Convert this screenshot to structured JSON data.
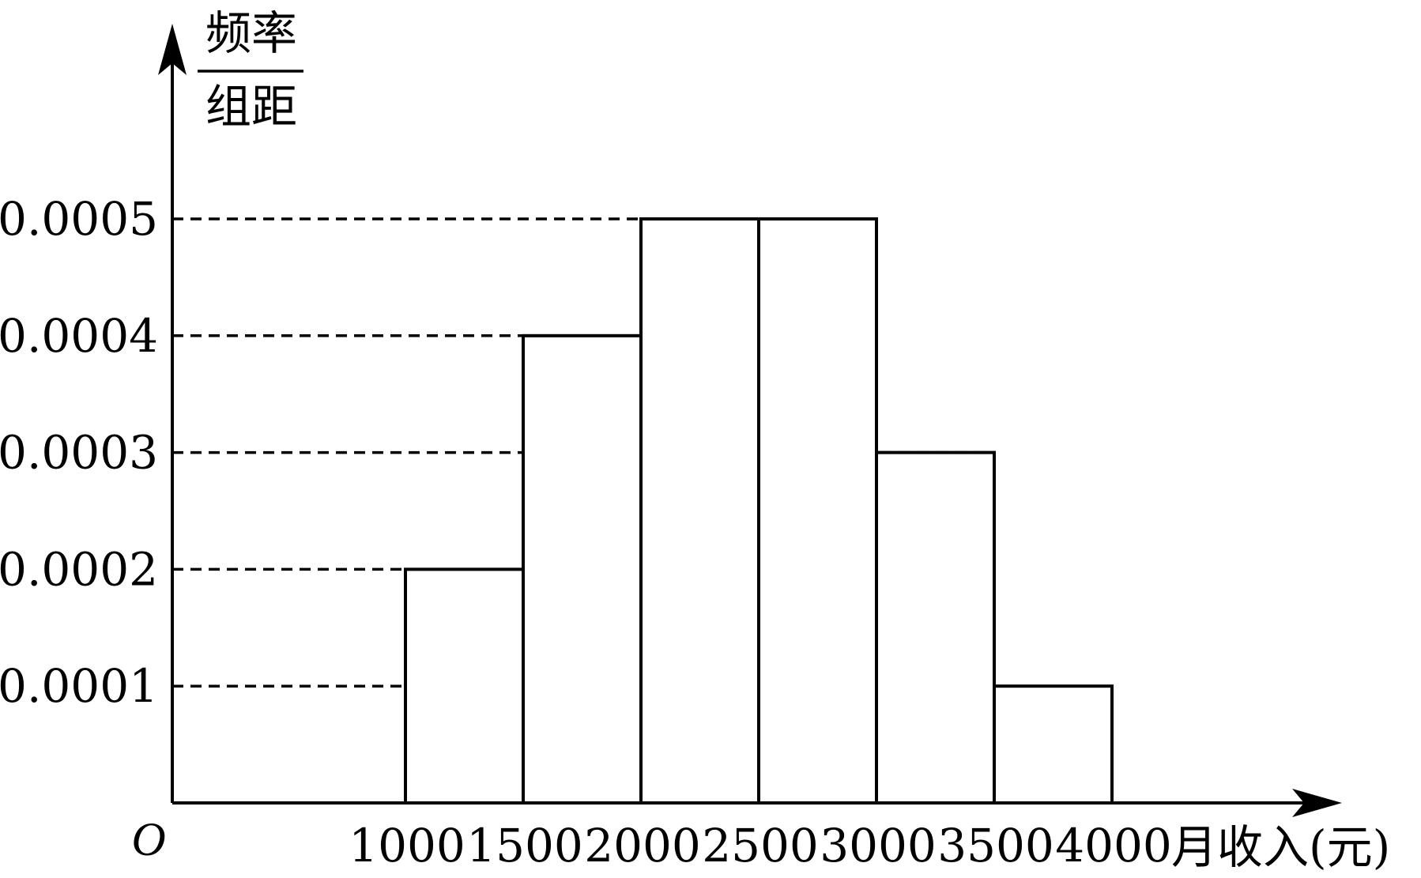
{
  "chart_data": {
    "type": "bar",
    "subtype": "histogram",
    "title": "",
    "ylabel_numerator": "频率",
    "ylabel_denominator": "组距",
    "xlabel": "月收入(元)",
    "origin_label": "O",
    "bins": [
      {
        "start": 1000,
        "end": 1500,
        "value": 0.0002
      },
      {
        "start": 1500,
        "end": 2000,
        "value": 0.0004
      },
      {
        "start": 2000,
        "end": 2500,
        "value": 0.0005
      },
      {
        "start": 2500,
        "end": 3000,
        "value": 0.0005
      },
      {
        "start": 3000,
        "end": 3500,
        "value": 0.0003
      },
      {
        "start": 3500,
        "end": 4000,
        "value": 0.0001
      }
    ],
    "x_ticks": [
      "1000",
      "1500",
      "2000",
      "2500",
      "3000",
      "3500",
      "4000"
    ],
    "y_ticks": [
      "0.0001",
      "0.0002",
      "0.0003",
      "0.0004",
      "0.0005"
    ],
    "xlim": [
      0,
      5100
    ],
    "ylim": [
      0,
      0.0005
    ],
    "grid": false,
    "dashed_guides": true
  }
}
